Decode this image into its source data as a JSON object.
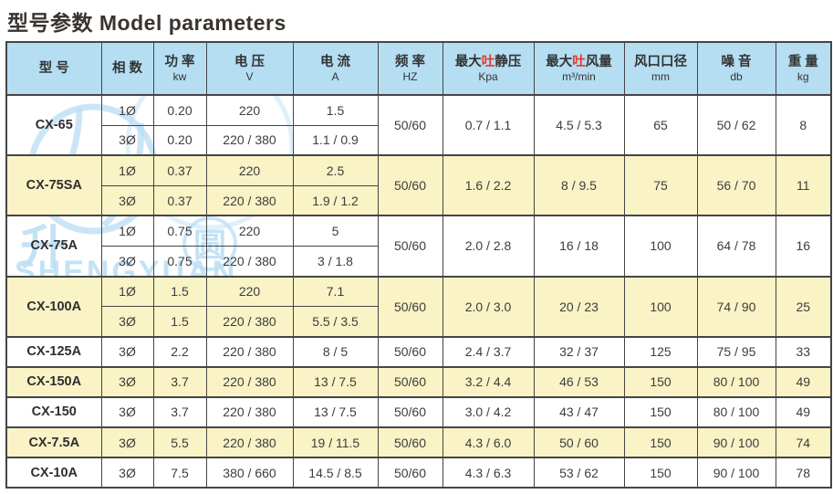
{
  "title": "型号参数 Model parameters",
  "colors": {
    "header_bg": "#b5def2",
    "row_yellow": "#f9f3c5",
    "row_white": "#ffffff",
    "border": "#454545",
    "text": "#3d3d3d",
    "text_dark": "#39342f",
    "accent_red": "#e53a2e",
    "watermark_blue": "#b8ddf3"
  },
  "watermark": {
    "text": "SHENGYUAN",
    "char_left": "升",
    "char_right": "圆"
  },
  "table": {
    "headers": [
      {
        "key": "model",
        "label": "型 号",
        "unit": ""
      },
      {
        "key": "phase",
        "label": "相 数",
        "unit": ""
      },
      {
        "key": "power",
        "label": "功 率",
        "unit": "kw"
      },
      {
        "key": "voltage",
        "label": "电 压",
        "unit": "V"
      },
      {
        "key": "current",
        "label": "电 流",
        "unit": "A"
      },
      {
        "key": "frequency",
        "label": "频 率",
        "unit": "HZ"
      },
      {
        "key": "max-static-pressure",
        "parts": [
          "最大",
          "吐",
          "静压"
        ],
        "unit": "Kpa"
      },
      {
        "key": "max-air-volume",
        "parts": [
          "最大",
          "吐",
          "风量"
        ],
        "unit": "m³/min"
      },
      {
        "key": "outlet-diameter",
        "label": "风口口径",
        "unit": "mm"
      },
      {
        "key": "noise",
        "label": "噪 音",
        "unit": "db"
      },
      {
        "key": "weight",
        "label": "重 量",
        "unit": "kg"
      }
    ],
    "groups": [
      {
        "model": "CX-65",
        "bg": "white",
        "rows": [
          {
            "phase": "1Ø",
            "power": "0.20",
            "voltage": "220",
            "current": "1.5"
          },
          {
            "phase": "3Ø",
            "power": "0.20",
            "voltage": "220 / 380",
            "current": "1.1 / 0.9"
          }
        ],
        "merged": {
          "frequency": "50/60",
          "max_static_pressure": "0.7 / 1.1",
          "max_air_volume": "4.5 / 5.3",
          "outlet_diameter": "65",
          "noise": "50 / 62",
          "weight": "8"
        }
      },
      {
        "model": "CX-75SA",
        "bg": "yellow",
        "rows": [
          {
            "phase": "1Ø",
            "power": "0.37",
            "voltage": "220",
            "current": "2.5"
          },
          {
            "phase": "3Ø",
            "power": "0.37",
            "voltage": "220 / 380",
            "current": "1.9 / 1.2"
          }
        ],
        "merged": {
          "frequency": "50/60",
          "max_static_pressure": "1.6 / 2.2",
          "max_air_volume": "8 / 9.5",
          "outlet_diameter": "75",
          "noise": "56 / 70",
          "weight": "11"
        }
      },
      {
        "model": "CX-75A",
        "bg": "white",
        "rows": [
          {
            "phase": "1Ø",
            "power": "0.75",
            "voltage": "220",
            "current": "5"
          },
          {
            "phase": "3Ø",
            "power": "0.75",
            "voltage": "220 / 380",
            "current": "3 / 1.8"
          }
        ],
        "merged": {
          "frequency": "50/60",
          "max_static_pressure": "2.0 / 2.8",
          "max_air_volume": "16 / 18",
          "outlet_diameter": "100",
          "noise": "64 / 78",
          "weight": "16"
        }
      },
      {
        "model": "CX-100A",
        "bg": "yellow",
        "rows": [
          {
            "phase": "1Ø",
            "power": "1.5",
            "voltage": "220",
            "current": "7.1"
          },
          {
            "phase": "3Ø",
            "power": "1.5",
            "voltage": "220 / 380",
            "current": "5.5 / 3.5"
          }
        ],
        "merged": {
          "frequency": "50/60",
          "max_static_pressure": "2.0 / 3.0",
          "max_air_volume": "20 / 23",
          "outlet_diameter": "100",
          "noise": "74 / 90",
          "weight": "25"
        }
      },
      {
        "model": "CX-125A",
        "bg": "white",
        "rows": [
          {
            "phase": "3Ø",
            "power": "2.2",
            "voltage": "220 / 380",
            "current": "8 / 5"
          }
        ],
        "merged": {
          "frequency": "50/60",
          "max_static_pressure": "2.4 / 3.7",
          "max_air_volume": "32 / 37",
          "outlet_diameter": "125",
          "noise": "75 / 95",
          "weight": "33"
        }
      },
      {
        "model": "CX-150A",
        "bg": "yellow",
        "rows": [
          {
            "phase": "3Ø",
            "power": "3.7",
            "voltage": "220 / 380",
            "current": "13 / 7.5"
          }
        ],
        "merged": {
          "frequency": "50/60",
          "max_static_pressure": "3.2 / 4.4",
          "max_air_volume": "46 / 53",
          "outlet_diameter": "150",
          "noise": "80 / 100",
          "weight": "49"
        }
      },
      {
        "model": "CX-150",
        "bg": "white",
        "rows": [
          {
            "phase": "3Ø",
            "power": "3.7",
            "voltage": "220 / 380",
            "current": "13 / 7.5"
          }
        ],
        "merged": {
          "frequency": "50/60",
          "max_static_pressure": "3.0 / 4.2",
          "max_air_volume": "43 / 47",
          "outlet_diameter": "150",
          "noise": "80 / 100",
          "weight": "49"
        }
      },
      {
        "model": "CX-7.5A",
        "bg": "yellow",
        "rows": [
          {
            "phase": "3Ø",
            "power": "5.5",
            "voltage": "220 / 380",
            "current": "19 / 11.5"
          }
        ],
        "merged": {
          "frequency": "50/60",
          "max_static_pressure": "4.3 / 6.0",
          "max_air_volume": "50 / 60",
          "outlet_diameter": "150",
          "noise": "90 / 100",
          "weight": "74"
        }
      },
      {
        "model": "CX-10A",
        "bg": "white",
        "rows": [
          {
            "phase": "3Ø",
            "power": "7.5",
            "voltage": "380 / 660",
            "current": "14.5 / 8.5"
          }
        ],
        "merged": {
          "frequency": "50/60",
          "max_static_pressure": "4.3 / 6.3",
          "max_air_volume": "53 / 62",
          "outlet_diameter": "150",
          "noise": "90 / 100",
          "weight": "78"
        }
      }
    ]
  }
}
